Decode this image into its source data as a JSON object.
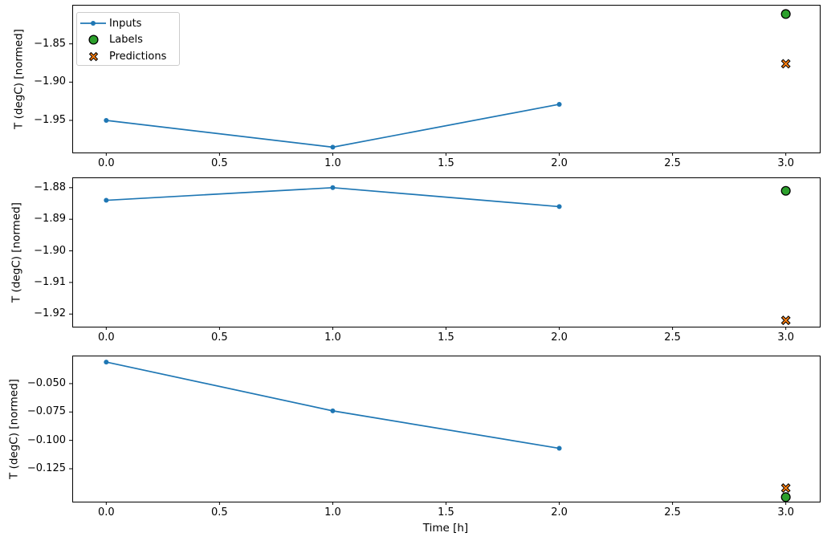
{
  "colors": {
    "inputs_line": "#1f77b4",
    "labels_marker": "#2ca02c",
    "predictions_marker": "#ff7f0e",
    "marker_edge": "#000000",
    "axis": "#000000",
    "text": "#000000",
    "legend_border": "#cccccc"
  },
  "legend": {
    "items": [
      {
        "label": "Inputs",
        "marker": "line-dot",
        "color": "#1f77b4"
      },
      {
        "label": "Labels",
        "marker": "circle",
        "color": "#2ca02c"
      },
      {
        "label": "Predictions",
        "marker": "X",
        "color": "#ff7f0e"
      }
    ]
  },
  "chart_data": [
    {
      "type": "line",
      "title": "",
      "xlabel": "",
      "ylabel": "T (degC) [normed]",
      "xlim": [
        -0.15,
        3.15
      ],
      "ylim": [
        -1.992,
        -1.8
      ],
      "grid": false,
      "legend": "upper left",
      "xticks": [
        0.0,
        0.5,
        1.0,
        1.5,
        2.0,
        2.5,
        3.0
      ],
      "xtick_labels": [
        "0.0",
        "0.5",
        "1.0",
        "1.5",
        "2.0",
        "2.5",
        "3.0"
      ],
      "yticks": [
        -1.85,
        -1.9,
        -1.95
      ],
      "ytick_labels": [
        "−1.85",
        "−1.90",
        "−1.95"
      ],
      "series": [
        {
          "name": "Inputs",
          "marker": "dot-line",
          "color": "#1f77b4",
          "x": [
            0,
            1,
            2
          ],
          "y": [
            -1.95,
            -1.985,
            -1.929
          ]
        },
        {
          "name": "Labels",
          "marker": "circle",
          "color": "#2ca02c",
          "x": [
            3
          ],
          "y": [
            -1.811
          ]
        },
        {
          "name": "Predictions",
          "marker": "X",
          "color": "#ff7f0e",
          "x": [
            3
          ],
          "y": [
            -1.876
          ]
        }
      ]
    },
    {
      "type": "line",
      "title": "",
      "xlabel": "",
      "ylabel": "T (degC) [normed]",
      "xlim": [
        -0.15,
        3.15
      ],
      "ylim": [
        -1.924,
        -1.877
      ],
      "grid": false,
      "legend": false,
      "xticks": [
        0.0,
        0.5,
        1.0,
        1.5,
        2.0,
        2.5,
        3.0
      ],
      "xtick_labels": [
        "0.0",
        "0.5",
        "1.0",
        "1.5",
        "2.0",
        "2.5",
        "3.0"
      ],
      "yticks": [
        -1.88,
        -1.89,
        -1.9,
        -1.91,
        -1.92
      ],
      "ytick_labels": [
        "−1.88",
        "−1.89",
        "−1.90",
        "−1.91",
        "−1.92"
      ],
      "series": [
        {
          "name": "Inputs",
          "marker": "dot-line",
          "color": "#1f77b4",
          "x": [
            0,
            1,
            2
          ],
          "y": [
            -1.884,
            -1.88,
            -1.886
          ]
        },
        {
          "name": "Labels",
          "marker": "circle",
          "color": "#2ca02c",
          "x": [
            3
          ],
          "y": [
            -1.881
          ]
        },
        {
          "name": "Predictions",
          "marker": "X",
          "color": "#ff7f0e",
          "x": [
            3
          ],
          "y": [
            -1.922
          ]
        }
      ]
    },
    {
      "type": "line",
      "title": "",
      "xlabel": "Time [h]",
      "ylabel": "T (degC) [normed]",
      "xlim": [
        -0.15,
        3.15
      ],
      "ylim": [
        -0.154,
        -0.026
      ],
      "grid": false,
      "legend": false,
      "xticks": [
        0.0,
        0.5,
        1.0,
        1.5,
        2.0,
        2.5,
        3.0
      ],
      "xtick_labels": [
        "0.0",
        "0.5",
        "1.0",
        "1.5",
        "2.0",
        "2.5",
        "3.0"
      ],
      "yticks": [
        -0.05,
        -0.075,
        -0.1,
        -0.125
      ],
      "ytick_labels": [
        "−0.050",
        "−0.075",
        "−0.100",
        "−0.125"
      ],
      "series": [
        {
          "name": "Inputs",
          "marker": "dot-line",
          "color": "#1f77b4",
          "x": [
            0,
            1,
            2
          ],
          "y": [
            -0.031,
            -0.074,
            -0.107
          ]
        },
        {
          "name": "Labels",
          "marker": "circle",
          "color": "#2ca02c",
          "x": [
            3
          ],
          "y": [
            -0.15
          ]
        },
        {
          "name": "Predictions",
          "marker": "X",
          "color": "#ff7f0e",
          "x": [
            3
          ],
          "y": [
            -0.142
          ]
        }
      ]
    }
  ]
}
